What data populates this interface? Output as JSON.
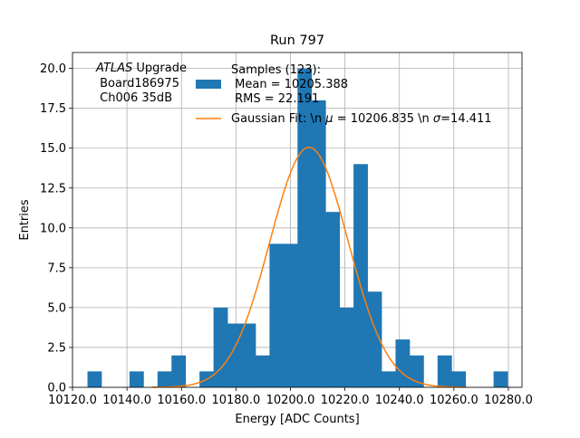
{
  "chart_data": {
    "type": "bar",
    "title": "Run 797",
    "xlabel": "Energy [ADC Counts]",
    "ylabel": "Entries",
    "xlim": [
      10120,
      10285
    ],
    "ylim": [
      0,
      21
    ],
    "grid": true,
    "x_ticks": [
      10120,
      10140,
      10160,
      10180,
      10200,
      10220,
      10240,
      10260,
      10280
    ],
    "x_tick_labels": [
      "10120.0",
      "10140.0",
      "10160.0",
      "10180.0",
      "10200.0",
      "10220.0",
      "10240.0",
      "10260.0",
      "10280.0"
    ],
    "y_ticks": [
      0,
      2.5,
      5,
      7.5,
      10,
      12.5,
      15,
      17.5,
      20
    ],
    "y_tick_labels": [
      "0.0",
      "2.5",
      "5.0",
      "7.5",
      "10.0",
      "12.5",
      "15.0",
      "17.5",
      "20.0"
    ],
    "histogram": {
      "bin_start": 10125.5,
      "bin_width": 5.14,
      "counts": [
        1,
        0,
        0,
        1,
        0,
        1,
        2,
        0,
        1,
        5,
        4,
        4,
        2,
        9,
        9,
        20,
        18,
        11,
        5,
        14,
        6,
        1,
        3,
        2,
        0,
        2,
        1,
        0,
        0,
        1
      ],
      "color": "#1f77b4"
    },
    "fit": {
      "mu": 10206.835,
      "sigma": 14.411,
      "amplitude": 15.05,
      "color": "#ff7f0e"
    },
    "annotation": {
      "italic": "ATLAS",
      "line1_rest": " Upgrade",
      "line2": " Board186975",
      "line3": " Ch006 35dB"
    },
    "legend": {
      "placement": "top-center",
      "hist_line1": "Samples (123):",
      "hist_line2": " Mean = 10205.388",
      "hist_line3": " RMS = 22.191",
      "fit_label_pre": "Gaussian Fit: \\n ",
      "fit_mu_symbol": "μ",
      "fit_label_mid": " = 10206.835 \\n ",
      "fit_sigma_symbol": "σ",
      "fit_label_post": "=14.411"
    }
  }
}
